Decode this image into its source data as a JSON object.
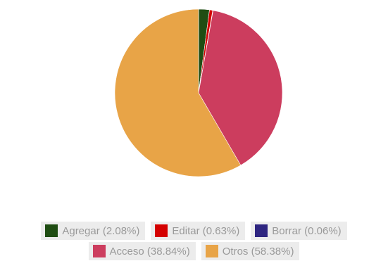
{
  "chart_data": {
    "type": "pie",
    "categories": [
      "Agregar",
      "Editar",
      "Borrar",
      "Acceso",
      "Otros"
    ],
    "values": [
      2.08,
      0.63,
      0.06,
      38.84,
      58.38
    ],
    "colors": [
      "#1f4d13",
      "#d40000",
      "#2e2580",
      "#cc3d5e",
      "#e8a447"
    ],
    "legend_placement": "bottom"
  },
  "legend": {
    "items": [
      {
        "label": "Agregar (2.08%)",
        "color": "#1f4d13"
      },
      {
        "label": "Editar (0.63%)",
        "color": "#d40000"
      },
      {
        "label": "Borrar (0.06%)",
        "color": "#2e2580"
      },
      {
        "label": "Acceso (38.84%)",
        "color": "#cc3d5e"
      },
      {
        "label": "Otros (58.38%)",
        "color": "#e8a447"
      }
    ]
  }
}
